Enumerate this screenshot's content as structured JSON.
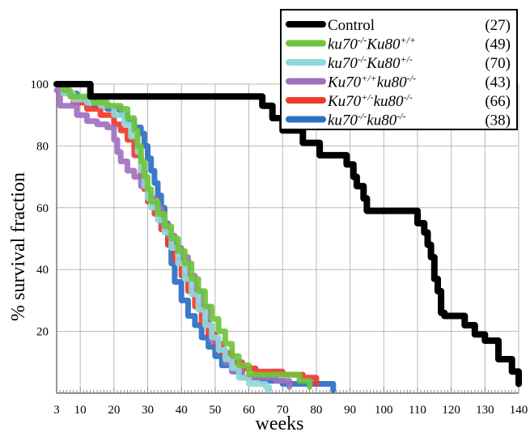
{
  "chart_data": {
    "type": "line",
    "title": "",
    "xlabel": "weeks",
    "ylabel": "% survival fraction",
    "xlim": [
      3,
      140
    ],
    "ylim": [
      0,
      100
    ],
    "xticks": [
      3,
      10,
      20,
      30,
      40,
      50,
      60,
      70,
      80,
      90,
      100,
      110,
      120,
      130,
      140
    ],
    "yticks": [
      20,
      40,
      60,
      80,
      100
    ],
    "grid": true,
    "legend_position": "top-right",
    "series": [
      {
        "name": "Control",
        "n": "(27)",
        "color": "#000000",
        "points": [
          [
            3,
            100
          ],
          [
            12,
            100
          ],
          [
            13,
            96
          ],
          [
            61,
            96
          ],
          [
            64,
            93
          ],
          [
            67,
            89
          ],
          [
            70,
            85
          ],
          [
            74,
            85
          ],
          [
            76,
            81
          ],
          [
            80,
            81
          ],
          [
            81,
            77
          ],
          [
            87,
            77
          ],
          [
            89,
            74
          ],
          [
            91,
            70
          ],
          [
            92,
            67
          ],
          [
            94,
            63
          ],
          [
            95,
            59
          ],
          [
            108,
            59
          ],
          [
            110,
            55
          ],
          [
            112,
            52
          ],
          [
            113,
            48
          ],
          [
            114,
            44
          ],
          [
            115,
            37
          ],
          [
            116,
            33
          ],
          [
            117,
            26
          ],
          [
            118,
            25
          ],
          [
            123,
            25
          ],
          [
            124,
            22
          ],
          [
            127,
            19
          ],
          [
            130,
            17
          ],
          [
            133,
            17
          ],
          [
            134,
            11
          ],
          [
            137,
            11
          ],
          [
            138,
            7
          ],
          [
            140,
            3
          ]
        ]
      },
      {
        "name": "ku70-/-Ku80+/+",
        "n": "(49)",
        "color": "#6fc43a",
        "points": [
          [
            3,
            100
          ],
          [
            5,
            98
          ],
          [
            7,
            96
          ],
          [
            12,
            96
          ],
          [
            14,
            94
          ],
          [
            18,
            93
          ],
          [
            22,
            92
          ],
          [
            24,
            89
          ],
          [
            26,
            85
          ],
          [
            27,
            80
          ],
          [
            28,
            75
          ],
          [
            29,
            70
          ],
          [
            30,
            66
          ],
          [
            31,
            62
          ],
          [
            33,
            58
          ],
          [
            35,
            54
          ],
          [
            37,
            50
          ],
          [
            39,
            46
          ],
          [
            41,
            42
          ],
          [
            43,
            37
          ],
          [
            45,
            33
          ],
          [
            47,
            28
          ],
          [
            49,
            24
          ],
          [
            51,
            20
          ],
          [
            53,
            16
          ],
          [
            55,
            12
          ],
          [
            57,
            9
          ],
          [
            60,
            6
          ],
          [
            63,
            6
          ],
          [
            70,
            6
          ],
          [
            75,
            4
          ],
          [
            78,
            2
          ]
        ]
      },
      {
        "name": "ku70-/-Ku80+/-",
        "n": "(70)",
        "color": "#8fd8d8",
        "points": [
          [
            3,
            100
          ],
          [
            5,
            97
          ],
          [
            8,
            95
          ],
          [
            12,
            94
          ],
          [
            16,
            93
          ],
          [
            20,
            90
          ],
          [
            23,
            87
          ],
          [
            25,
            83
          ],
          [
            27,
            78
          ],
          [
            28,
            72
          ],
          [
            29,
            67
          ],
          [
            30,
            63
          ],
          [
            31,
            60
          ],
          [
            33,
            56
          ],
          [
            35,
            52
          ],
          [
            37,
            47
          ],
          [
            39,
            42
          ],
          [
            41,
            37
          ],
          [
            43,
            32
          ],
          [
            45,
            27
          ],
          [
            47,
            22
          ],
          [
            49,
            18
          ],
          [
            51,
            14
          ],
          [
            53,
            11
          ],
          [
            55,
            8
          ],
          [
            57,
            5
          ],
          [
            60,
            3
          ],
          [
            65,
            2
          ],
          [
            66,
            1
          ]
        ]
      },
      {
        "name": "Ku70+/+ku80-/-",
        "n": "(43)",
        "color": "#a070c0",
        "points": [
          [
            3,
            98
          ],
          [
            4,
            93
          ],
          [
            8,
            93
          ],
          [
            9,
            90
          ],
          [
            12,
            88
          ],
          [
            15,
            87
          ],
          [
            18,
            86
          ],
          [
            20,
            82
          ],
          [
            21,
            78
          ],
          [
            22,
            75
          ],
          [
            24,
            72
          ],
          [
            26,
            70
          ],
          [
            28,
            67
          ],
          [
            30,
            63
          ],
          [
            32,
            60
          ],
          [
            34,
            55
          ],
          [
            36,
            51
          ],
          [
            38,
            47
          ],
          [
            40,
            44
          ],
          [
            42,
            38
          ],
          [
            44,
            33
          ],
          [
            46,
            28
          ],
          [
            48,
            22
          ],
          [
            49,
            17
          ],
          [
            51,
            14
          ],
          [
            53,
            10
          ],
          [
            55,
            7
          ],
          [
            58,
            5
          ],
          [
            62,
            5
          ],
          [
            68,
            4
          ],
          [
            72,
            2
          ]
        ]
      },
      {
        "name": "Ku70+/-ku80-/-",
        "n": "(66)",
        "color": "#ee3a2f",
        "points": [
          [
            3,
            100
          ],
          [
            5,
            97
          ],
          [
            8,
            94
          ],
          [
            12,
            92
          ],
          [
            16,
            90
          ],
          [
            20,
            87
          ],
          [
            22,
            85
          ],
          [
            24,
            82
          ],
          [
            26,
            77
          ],
          [
            28,
            70
          ],
          [
            29,
            66
          ],
          [
            30,
            62
          ],
          [
            32,
            58
          ],
          [
            34,
            53
          ],
          [
            36,
            48
          ],
          [
            38,
            43
          ],
          [
            40,
            38
          ],
          [
            42,
            33
          ],
          [
            44,
            28
          ],
          [
            46,
            23
          ],
          [
            48,
            19
          ],
          [
            50,
            16
          ],
          [
            52,
            13
          ],
          [
            55,
            10
          ],
          [
            58,
            8
          ],
          [
            62,
            7
          ],
          [
            66,
            7
          ],
          [
            70,
            6
          ],
          [
            76,
            5
          ],
          [
            80,
            3
          ]
        ]
      },
      {
        "name": "ku70-/-ku80-/-",
        "n": "(38)",
        "color": "#2b6fc4",
        "points": [
          [
            3,
            100
          ],
          [
            6,
            97
          ],
          [
            9,
            95
          ],
          [
            12,
            95
          ],
          [
            14,
            93
          ],
          [
            18,
            92
          ],
          [
            22,
            90
          ],
          [
            24,
            88
          ],
          [
            26,
            86
          ],
          [
            28,
            84
          ],
          [
            29,
            80
          ],
          [
            30,
            76
          ],
          [
            31,
            72
          ],
          [
            32,
            68
          ],
          [
            33,
            64
          ],
          [
            34,
            60
          ],
          [
            35,
            55
          ],
          [
            36,
            48
          ],
          [
            37,
            42
          ],
          [
            38,
            36
          ],
          [
            40,
            30
          ],
          [
            42,
            25
          ],
          [
            44,
            22
          ],
          [
            46,
            18
          ],
          [
            48,
            15
          ],
          [
            50,
            12
          ],
          [
            52,
            9
          ],
          [
            55,
            7
          ],
          [
            58,
            5
          ],
          [
            64,
            4
          ],
          [
            70,
            3
          ],
          [
            80,
            3
          ],
          [
            84,
            3
          ],
          [
            85,
            1
          ]
        ]
      }
    ]
  },
  "legend": {
    "entries": [
      {
        "label_parts": [
          [
            "Control",
            ""
          ]
        ],
        "n": "(27)",
        "plain": true
      },
      {
        "label_parts": [
          [
            "ku70",
            ""
          ],
          [
            "-/-",
            "sup"
          ],
          [
            "Ku80",
            ""
          ],
          [
            "+/+",
            "sup"
          ]
        ],
        "n": "(49)"
      },
      {
        "label_parts": [
          [
            "ku70",
            ""
          ],
          [
            "-/-",
            "sup"
          ],
          [
            "Ku80",
            ""
          ],
          [
            "+/-",
            "sup"
          ]
        ],
        "n": "(70)"
      },
      {
        "label_parts": [
          [
            "Ku70",
            ""
          ],
          [
            "+/+",
            "sup"
          ],
          [
            "ku80",
            ""
          ],
          [
            "-/-",
            "sup"
          ]
        ],
        "n": "(43)"
      },
      {
        "label_parts": [
          [
            "Ku70",
            ""
          ],
          [
            "+/-",
            "sup"
          ],
          [
            "ku80",
            ""
          ],
          [
            "-/-",
            "sup"
          ]
        ],
        "n": "(66)"
      },
      {
        "label_parts": [
          [
            "ku70",
            ""
          ],
          [
            "-/-",
            "sup"
          ],
          [
            "ku80",
            ""
          ],
          [
            "-/-",
            "sup"
          ]
        ],
        "n": "(38)"
      }
    ]
  }
}
